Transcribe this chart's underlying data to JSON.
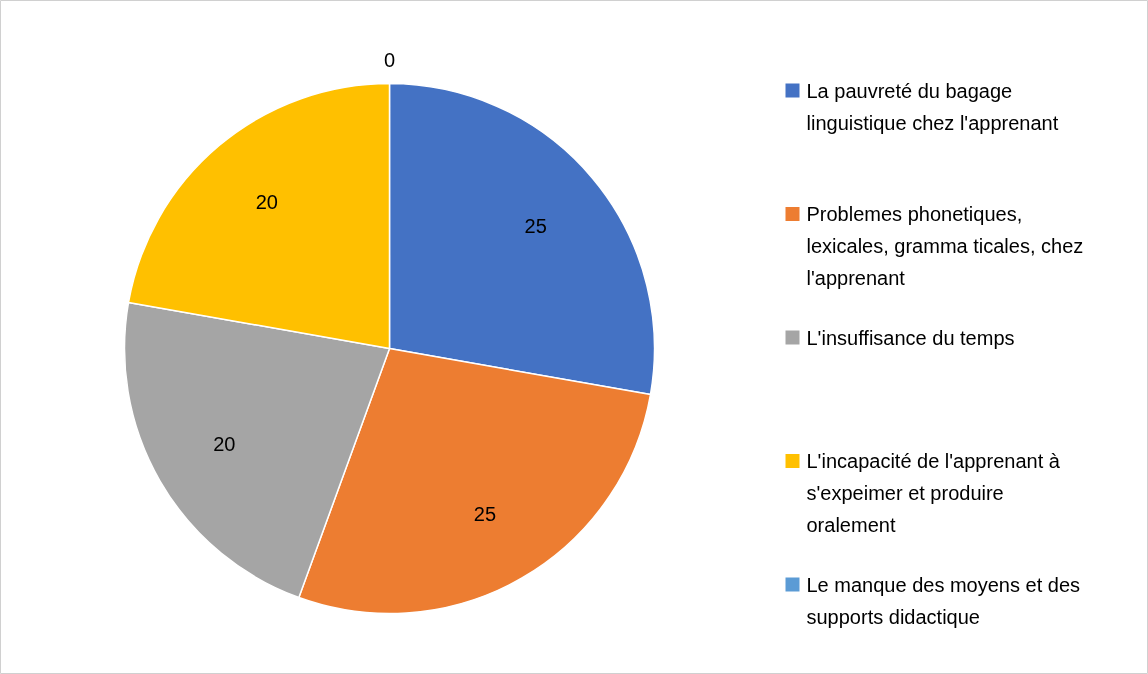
{
  "chart_data": {
    "type": "pie",
    "categories": [
      "La pauvreté du bagage linguistique chez l'apprenant",
      "Problemes phonetiques, lexicales, gramma ticales, chez l'apprenant",
      "L'insuffisance du temps",
      "L'incapacité de l'apprenant à s'expeimer et produire oralement",
      "Le manque des moyens et des supports didactique"
    ],
    "values": [
      25,
      25,
      20,
      20,
      0
    ],
    "colors": [
      "#4472c4",
      "#ed7d31",
      "#a5a5a5",
      "#ffc000",
      "#5b9bd5"
    ],
    "value_labels": [
      "25",
      "25",
      "20",
      "20",
      "0"
    ],
    "legend": "right"
  }
}
